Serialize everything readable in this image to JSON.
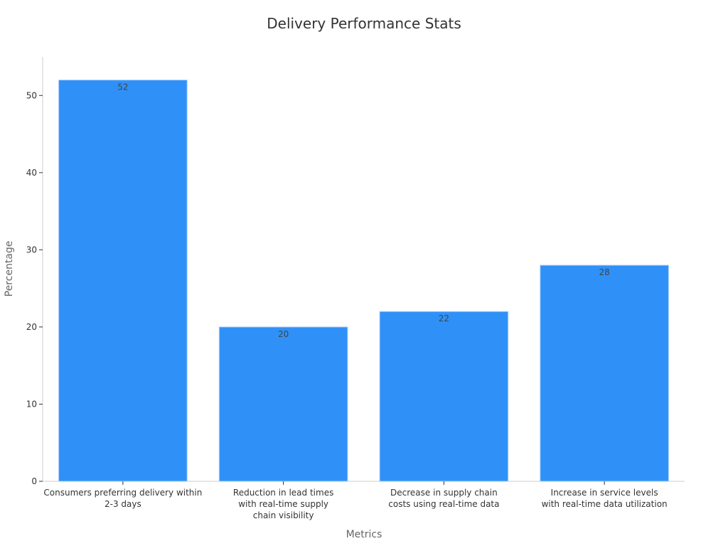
{
  "chart_data": {
    "type": "bar",
    "title": "Delivery Performance Stats",
    "xlabel": "Metrics",
    "ylabel": "Percentage",
    "categories": [
      [
        "Consumers preferring delivery within",
        "2-3 days"
      ],
      [
        "Reduction in lead times",
        "with real-time supply",
        "chain visibility"
      ],
      [
        "Decrease in supply chain",
        "costs using real-time data"
      ],
      [
        "Increase in service levels",
        "with real-time data utilization"
      ]
    ],
    "values": [
      52,
      20,
      22,
      28
    ],
    "data_labels": [
      "52",
      "20",
      "22",
      "28"
    ],
    "ylim": [
      0,
      55
    ],
    "yticks": [
      0,
      10,
      20,
      30,
      40,
      50
    ],
    "ytick_labels": [
      "0",
      "10",
      "20",
      "30",
      "40",
      "50"
    ],
    "grid": false,
    "bar_color": "#2f91f8",
    "bar_edge_color": "#a9cff9"
  }
}
